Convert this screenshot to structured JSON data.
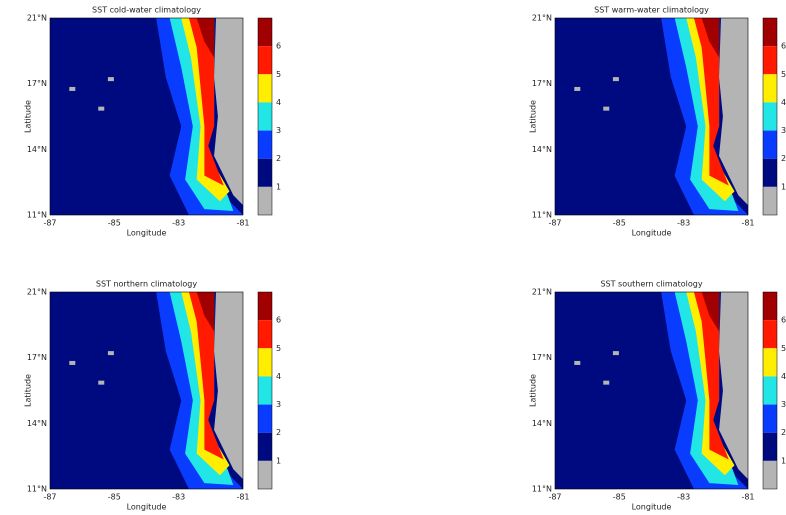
{
  "panels": [
    {
      "title": "SST cold-water climatology",
      "x_label": "Longitude",
      "y_label": "Latitude",
      "x_ticks": [
        "-87",
        "-85",
        "-83",
        "-81"
      ],
      "y_ticks": [
        "21°N",
        "17°N",
        "14°N",
        "11°N"
      ],
      "colorbar_labels": [
        "6",
        "5",
        "4",
        "3",
        "2",
        "1"
      ]
    },
    {
      "title": "SST warm-water climatology",
      "x_label": "Longitude",
      "y_label": "Latitude",
      "x_ticks": [
        "-87",
        "-85",
        "-83",
        "-81"
      ],
      "y_ticks": [
        "21°N",
        "17°N",
        "14°N",
        "11°N"
      ],
      "colorbar_labels": [
        "6",
        "5",
        "4",
        "3",
        "2",
        "1"
      ]
    },
    {
      "title": "SST northern climatology",
      "x_label": "Longitude",
      "y_label": "Latitude",
      "x_ticks": [
        "-87",
        "-85",
        "-83",
        "-81"
      ],
      "y_ticks": [
        "21°N",
        "17°N",
        "14°N",
        "11°N"
      ],
      "colorbar_labels": [
        "6",
        "5",
        "4",
        "3",
        "2",
        "1"
      ]
    },
    {
      "title": "SST southern climatology",
      "x_label": "Longitude",
      "y_label": "Latitude",
      "x_ticks": [
        "-87",
        "-85",
        "-83",
        "-81"
      ],
      "y_ticks": [
        "21°N",
        "17°N",
        "14°N",
        "11°N"
      ],
      "colorbar_labels": [
        "6",
        "5",
        "4",
        "3",
        "2",
        "1"
      ]
    }
  ]
}
